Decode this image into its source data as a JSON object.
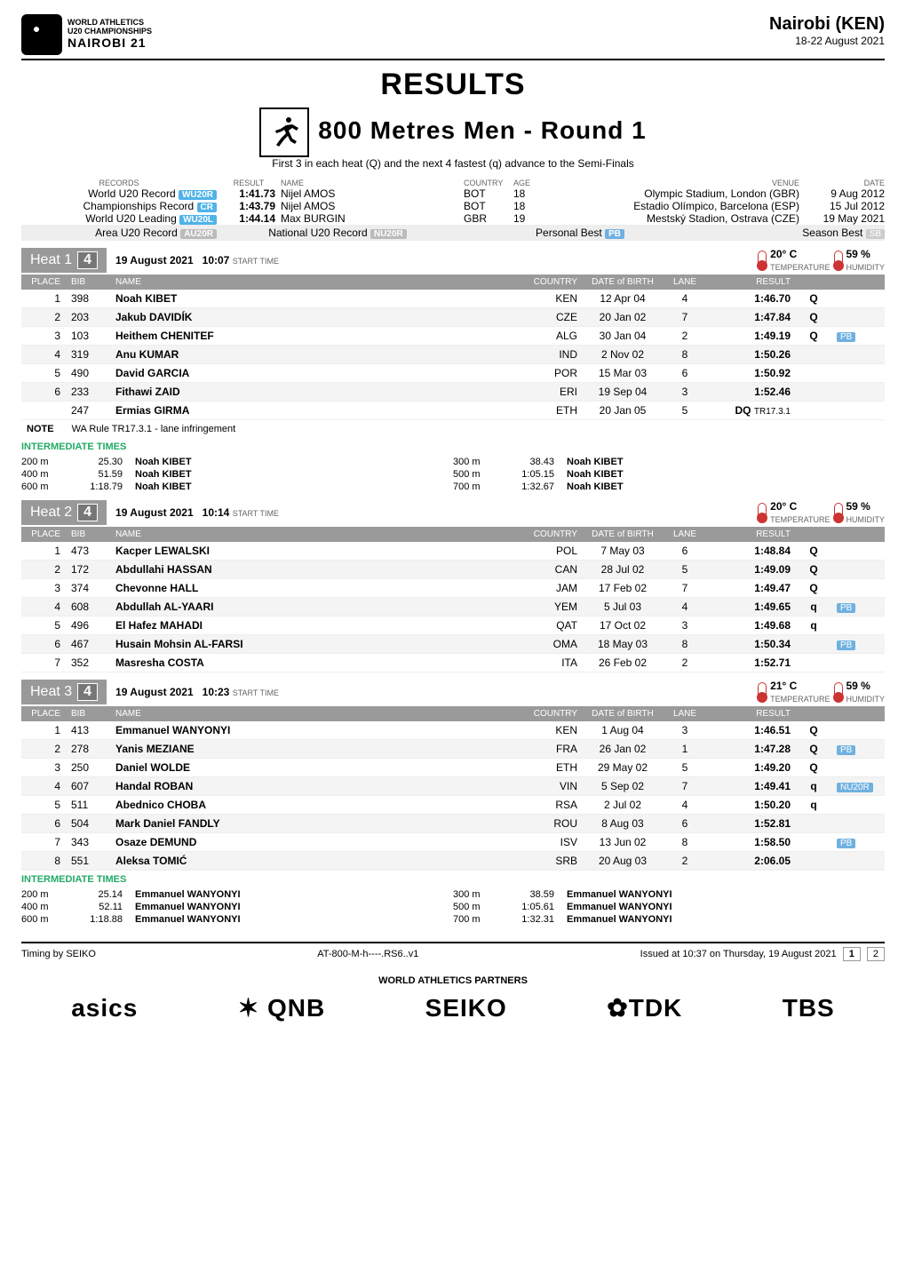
{
  "header": {
    "org_line1": "WORLD ATHLETICS",
    "org_line2": "U20 CHAMPIONSHIPS",
    "org_line3": "NAIROBI 21",
    "city": "Nairobi (KEN)",
    "dates": "18-22 August 2021"
  },
  "title": "RESULTS",
  "event": "800 Metres Men - Round 1",
  "subtitle": "First 3 in each heat (Q) and the next 4 fastest (q) advance to the Semi-Finals",
  "rec_hdr": {
    "c1": "RECORDS",
    "c2": "RESULT",
    "c3": "NAME",
    "c4": "COUNTRY",
    "c5": "AGE",
    "c6": "VENUE",
    "c7": "DATE"
  },
  "records": [
    {
      "label": "World U20 Record",
      "tag": "WU20R",
      "res": "1:41.73",
      "name": "Nijel AMOS",
      "ctry": "BOT",
      "age": "18",
      "venue": "Olympic Stadium, London (GBR)",
      "date": "9 Aug 2012"
    },
    {
      "label": "Championships Record",
      "tag": "CR",
      "res": "1:43.79",
      "name": "Nijel AMOS",
      "ctry": "BOT",
      "age": "18",
      "venue": "Estadio Olímpico, Barcelona (ESP)",
      "date": "15 Jul 2012"
    },
    {
      "label": "World U20 Leading",
      "tag": "WU20L",
      "res": "1:44.14",
      "name": "Max BURGIN",
      "ctry": "GBR",
      "age": "19",
      "venue": "Mestský Stadion, Ostrava (CZE)",
      "date": "19 May 2021"
    }
  ],
  "area_row": {
    "area_lbl": "Area U20 Record",
    "area_tag": "AU20R",
    "nat_lbl": "National U20 Record",
    "nat_tag": "NU20R",
    "pb_lbl": "Personal Best",
    "pb_tag": "PB",
    "sb_lbl": "Season Best",
    "sb_tag": "SB"
  },
  "heats": [
    {
      "name": "Heat 1",
      "num": "4",
      "date": "19 August 2021",
      "time": "10:07",
      "time_lbl": "START TIME",
      "temp": "20° C",
      "temp_lbl": "TEMPERATURE",
      "hum": "59 %",
      "hum_lbl": "HUMIDITY",
      "cols": {
        "place": "PLACE",
        "bib": "BIB",
        "name": "NAME",
        "country": "COUNTRY",
        "dob": "DATE of BIRTH",
        "lane": "LANE",
        "result": "RESULT"
      },
      "rows": [
        {
          "pl": "1",
          "bib": "398",
          "name": "Noah KIBET",
          "ctry": "KEN",
          "dob": "12 Apr 04",
          "lane": "4",
          "res": "1:46.70",
          "q": "Q",
          "tag": ""
        },
        {
          "pl": "2",
          "bib": "203",
          "name": "Jakub DAVIDÍK",
          "ctry": "CZE",
          "dob": "20 Jan 02",
          "lane": "7",
          "res": "1:47.84",
          "q": "Q",
          "tag": ""
        },
        {
          "pl": "3",
          "bib": "103",
          "name": "Heithem CHENITEF",
          "ctry": "ALG",
          "dob": "30 Jan 04",
          "lane": "2",
          "res": "1:49.19",
          "q": "Q",
          "tag": "PB"
        },
        {
          "pl": "4",
          "bib": "319",
          "name": "Anu KUMAR",
          "ctry": "IND",
          "dob": "2 Nov 02",
          "lane": "8",
          "res": "1:50.26",
          "q": "",
          "tag": ""
        },
        {
          "pl": "5",
          "bib": "490",
          "name": "David GARCIA",
          "ctry": "POR",
          "dob": "15 Mar 03",
          "lane": "6",
          "res": "1:50.92",
          "q": "",
          "tag": ""
        },
        {
          "pl": "6",
          "bib": "233",
          "name": "Fithawi ZAID",
          "ctry": "ERI",
          "dob": "19 Sep 04",
          "lane": "3",
          "res": "1:52.46",
          "q": "",
          "tag": ""
        },
        {
          "pl": "",
          "bib": "247",
          "name": "Ermias GIRMA",
          "ctry": "ETH",
          "dob": "20 Jan 05",
          "lane": "5",
          "res": "DQ",
          "q": "",
          "tag": "",
          "extra": "TR17.3.1"
        }
      ],
      "note": {
        "label": "NOTE",
        "text": "WA Rule TR17.3.1 - lane infringement"
      },
      "inter_title": "INTERMEDIATE TIMES",
      "inter": [
        [
          {
            "d": "200 m",
            "t": "25.30",
            "n": "Noah KIBET"
          },
          {
            "d": "300 m",
            "t": "38.43",
            "n": "Noah KIBET"
          }
        ],
        [
          {
            "d": "400 m",
            "t": "51.59",
            "n": "Noah KIBET"
          },
          {
            "d": "500 m",
            "t": "1:05.15",
            "n": "Noah KIBET"
          }
        ],
        [
          {
            "d": "600 m",
            "t": "1:18.79",
            "n": "Noah KIBET"
          },
          {
            "d": "700 m",
            "t": "1:32.67",
            "n": "Noah KIBET"
          }
        ]
      ]
    },
    {
      "name": "Heat 2",
      "num": "4",
      "date": "19 August 2021",
      "time": "10:14",
      "time_lbl": "START TIME",
      "temp": "20° C",
      "temp_lbl": "TEMPERATURE",
      "hum": "59 %",
      "hum_lbl": "HUMIDITY",
      "cols": {
        "place": "PLACE",
        "bib": "BIB",
        "name": "NAME",
        "country": "COUNTRY",
        "dob": "DATE of BIRTH",
        "lane": "LANE",
        "result": "RESULT"
      },
      "rows": [
        {
          "pl": "1",
          "bib": "473",
          "name": "Kacper LEWALSKI",
          "ctry": "POL",
          "dob": "7 May 03",
          "lane": "6",
          "res": "1:48.84",
          "q": "Q",
          "tag": ""
        },
        {
          "pl": "2",
          "bib": "172",
          "name": "Abdullahi HASSAN",
          "ctry": "CAN",
          "dob": "28 Jul 02",
          "lane": "5",
          "res": "1:49.09",
          "q": "Q",
          "tag": ""
        },
        {
          "pl": "3",
          "bib": "374",
          "name": "Chevonne HALL",
          "ctry": "JAM",
          "dob": "17 Feb 02",
          "lane": "7",
          "res": "1:49.47",
          "q": "Q",
          "tag": ""
        },
        {
          "pl": "4",
          "bib": "608",
          "name": "Abdullah AL-YAARI",
          "ctry": "YEM",
          "dob": "5 Jul 03",
          "lane": "4",
          "res": "1:49.65",
          "q": "q",
          "tag": "PB"
        },
        {
          "pl": "5",
          "bib": "496",
          "name": "El Hafez MAHADI",
          "ctry": "QAT",
          "dob": "17 Oct 02",
          "lane": "3",
          "res": "1:49.68",
          "q": "q",
          "tag": ""
        },
        {
          "pl": "6",
          "bib": "467",
          "name": "Husain Mohsin AL-FARSI",
          "ctry": "OMA",
          "dob": "18 May 03",
          "lane": "8",
          "res": "1:50.34",
          "q": "",
          "tag": "PB"
        },
        {
          "pl": "7",
          "bib": "352",
          "name": "Masresha COSTA",
          "ctry": "ITA",
          "dob": "26 Feb 02",
          "lane": "2",
          "res": "1:52.71",
          "q": "",
          "tag": ""
        }
      ]
    },
    {
      "name": "Heat 3",
      "num": "4",
      "date": "19 August 2021",
      "time": "10:23",
      "time_lbl": "START TIME",
      "temp": "21° C",
      "temp_lbl": "TEMPERATURE",
      "hum": "59 %",
      "hum_lbl": "HUMIDITY",
      "cols": {
        "place": "PLACE",
        "bib": "BIB",
        "name": "NAME",
        "country": "COUNTRY",
        "dob": "DATE of BIRTH",
        "lane": "LANE",
        "result": "RESULT"
      },
      "rows": [
        {
          "pl": "1",
          "bib": "413",
          "name": "Emmanuel WANYONYI",
          "ctry": "KEN",
          "dob": "1 Aug 04",
          "lane": "3",
          "res": "1:46.51",
          "q": "Q",
          "tag": ""
        },
        {
          "pl": "2",
          "bib": "278",
          "name": "Yanis MEZIANE",
          "ctry": "FRA",
          "dob": "26 Jan 02",
          "lane": "1",
          "res": "1:47.28",
          "q": "Q",
          "tag": "PB"
        },
        {
          "pl": "3",
          "bib": "250",
          "name": "Daniel WOLDE",
          "ctry": "ETH",
          "dob": "29 May 02",
          "lane": "5",
          "res": "1:49.20",
          "q": "Q",
          "tag": ""
        },
        {
          "pl": "4",
          "bib": "607",
          "name": "Handal ROBAN",
          "ctry": "VIN",
          "dob": "5 Sep 02",
          "lane": "7",
          "res": "1:49.41",
          "q": "q",
          "tag": "NU20R"
        },
        {
          "pl": "5",
          "bib": "511",
          "name": "Abednico CHOBA",
          "ctry": "RSA",
          "dob": "2 Jul 02",
          "lane": "4",
          "res": "1:50.20",
          "q": "q",
          "tag": ""
        },
        {
          "pl": "6",
          "bib": "504",
          "name": "Mark Daniel FANDLY",
          "ctry": "ROU",
          "dob": "8 Aug 03",
          "lane": "6",
          "res": "1:52.81",
          "q": "",
          "tag": ""
        },
        {
          "pl": "7",
          "bib": "343",
          "name": "Osaze DEMUND",
          "ctry": "ISV",
          "dob": "13 Jun 02",
          "lane": "8",
          "res": "1:58.50",
          "q": "",
          "tag": "PB"
        },
        {
          "pl": "8",
          "bib": "551",
          "name": "Aleksa TOMIĆ",
          "ctry": "SRB",
          "dob": "20 Aug 03",
          "lane": "2",
          "res": "2:06.05",
          "q": "",
          "tag": ""
        }
      ],
      "inter_title": "INTERMEDIATE TIMES",
      "inter": [
        [
          {
            "d": "200 m",
            "t": "25.14",
            "n": "Emmanuel WANYONYI"
          },
          {
            "d": "300 m",
            "t": "38.59",
            "n": "Emmanuel WANYONYI"
          }
        ],
        [
          {
            "d": "400 m",
            "t": "52.11",
            "n": "Emmanuel WANYONYI"
          },
          {
            "d": "500 m",
            "t": "1:05.61",
            "n": "Emmanuel WANYONYI"
          }
        ],
        [
          {
            "d": "600 m",
            "t": "1:18.88",
            "n": "Emmanuel WANYONYI"
          },
          {
            "d": "700 m",
            "t": "1:32.31",
            "n": "Emmanuel WANYONYI"
          }
        ]
      ]
    }
  ],
  "footer": {
    "left": "Timing by SEIKO",
    "mid": "AT-800-M-h----.RS6..v1",
    "right": "Issued at 10:37 on Thursday, 19 August 2021",
    "p1": "1",
    "p2": "2"
  },
  "partners_title": "WORLD ATHLETICS PARTNERS",
  "partners": [
    "asics",
    "✶ QNB",
    "SEIKO",
    "✿TDK",
    "TBS"
  ]
}
